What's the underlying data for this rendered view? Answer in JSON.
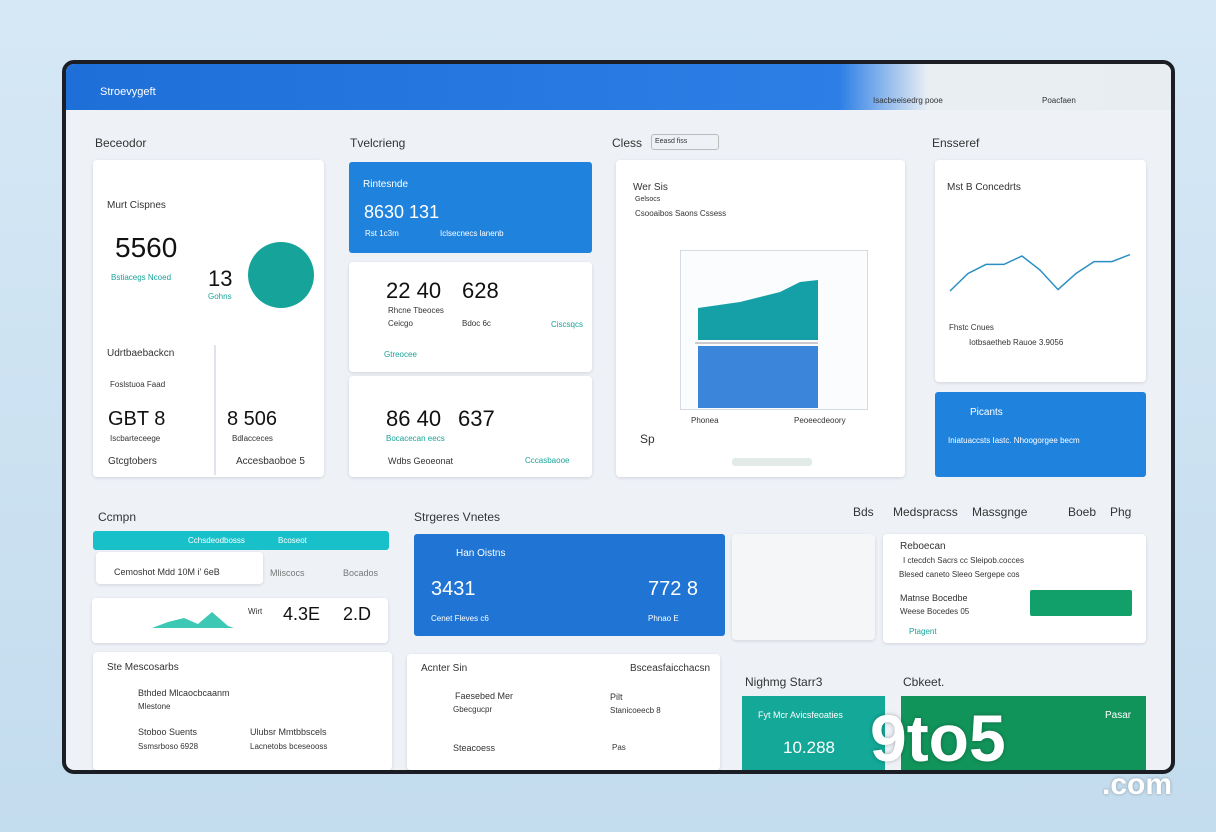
{
  "header": {
    "title": "Stroevygeft",
    "subtitle": "Isacbeeisedrg pooe",
    "user": "Poacfaen"
  },
  "sections": {
    "s1": "Beceodor",
    "s2": "Tvelcrieng",
    "s3": "Cless",
    "s3_input": "Eeasd fiss",
    "s4": "Ensseref",
    "s5": "Ccmpn",
    "s6": "Strgeres Vnetes",
    "s7": "Bds",
    "s8": "Medspracss",
    "s9": "Massgnge",
    "s10": "Boeb",
    "s11": "Phg"
  },
  "card1": {
    "title": "Murt Cispnes",
    "big": "5560",
    "sub": "Bstiacegs Ncoed",
    "num": "13",
    "link": "Gohns",
    "head2": "Udrtbaebackcn",
    "l1": "Foslstuoa Faad",
    "v1": "GBT 8",
    "d1": "Iscbarteceege",
    "f1": "Gtcgtobers",
    "v2": "8 506",
    "d2": "Bdlacceces",
    "f2": "Accesbaoboe 5"
  },
  "card2": {
    "title": "Rintesnde",
    "big": "8630 131",
    "a": "Rst 1c3m",
    "b": "Iclsecnecs lanenb"
  },
  "card3": {
    "v1": "22 40",
    "v2": "628",
    "a": "Rhcne Tbeoces",
    "b": "Ceicgo",
    "c": "Bdoc 6c",
    "d": "Ciscsqcs",
    "e": "Gtreocee"
  },
  "card4": {
    "v1": "86 40",
    "v2": "637",
    "a": "Bocacecan eecs",
    "b": "Wdbs Geoeonat",
    "c": "Cccasbaooe"
  },
  "card5": {
    "title": "Wer Sis",
    "sub": "Gelsocs",
    "desc": "Csooaibos Saons Cssess",
    "x1": "Phonea",
    "x2": "Peoeecdeoory",
    "foot": "Sp"
  },
  "card6": {
    "title": "Mst B Concedrts",
    "a": "Fhstc Cnues",
    "b": "Iotbsaetheb Rauoe 3.9056",
    "line": {
      "values": [
        20,
        45,
        58,
        58,
        70,
        50,
        22,
        45,
        62,
        62,
        72
      ],
      "ylim": [
        0,
        100
      ],
      "color": "#2b8fc4"
    }
  },
  "card7": {
    "title": "Picants",
    "desc": "Iniatuaccsts Iastc. Nhoogorgee becm"
  },
  "left": {
    "bar": "Cchsdeodbosss",
    "bar2": "Bcoseot",
    "row": "Cemoshot Mdd 10M i' 6eB",
    "r2": "Mliscocs",
    "r3": "Bocados",
    "w": "Wirt",
    "v1": "4.3E",
    "v2": "2.D"
  },
  "blue": {
    "title": "Han Oistns",
    "v1": "3431",
    "v2": "772 8",
    "a": "Cenet Fleves c6",
    "b": "Phnao E"
  },
  "right": {
    "title": "Reboecan",
    "a": "I ctecdch Sacrs cc Sleipob.cocces",
    "b": "Blesed caneto Sleeo Sergepe cos",
    "c": "Matnse Bocedbe",
    "d": "Weese Bocedes 05",
    "e": "Ptagent"
  },
  "bl": {
    "title": "Ste Mescosarbs",
    "a": "Bthded Mlcaocbcaanm",
    "b": "Mlestone",
    "c": "Stoboo Suents",
    "d": "Ssmsrboso 6928",
    "e": "Ulubsr Mmtbbscels",
    "f": "Lacnetobs bceseooss"
  },
  "bm": {
    "title": "Acnter Sin",
    "right": "Bsceasfaicchacsn",
    "a": "Faesebed Mer",
    "b": "Gbecgucpr",
    "c": "Pilt",
    "d": "Stanicoeecb 8",
    "e": "Steacoess",
    "f": "Pas"
  },
  "br": {
    "h1": "Nighmg Starr3",
    "h2": "Cbkeet.",
    "t": "Fyt Mcr Avicsfeoaties",
    "v": "10.288",
    "g": "Pasar"
  },
  "watermark": {
    "a": "9to5",
    "b": ".com"
  }
}
